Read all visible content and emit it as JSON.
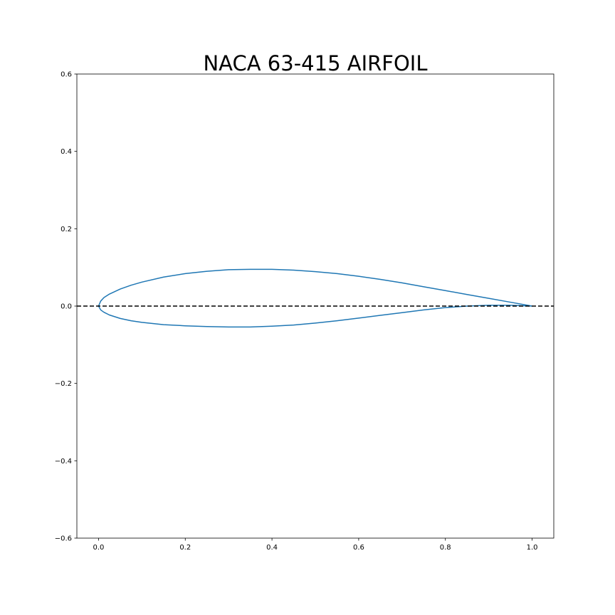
{
  "chart_data": {
    "type": "line",
    "title": "NACA 63-415 AIRFOIL",
    "xlabel": "",
    "ylabel": "",
    "xlim": [
      -0.05,
      1.05
    ],
    "ylim": [
      -0.6,
      0.6
    ],
    "x_ticks": [
      0.0,
      0.2,
      0.4,
      0.6,
      0.8,
      1.0
    ],
    "x_tick_labels": [
      "0.0",
      "0.2",
      "0.4",
      "0.6",
      "0.8",
      "1.0"
    ],
    "y_ticks": [
      -0.6,
      -0.4,
      -0.2,
      0.0,
      0.2,
      0.4,
      0.6
    ],
    "y_tick_labels": [
      "−0.6",
      "−0.4",
      "−0.2",
      "0.0",
      "0.2",
      "0.4",
      "0.6"
    ],
    "grid": false,
    "series": [
      {
        "color": "#1f77b4",
        "style": "solid",
        "x": [
          1.0,
          0.95,
          0.9,
          0.85,
          0.8,
          0.75,
          0.7,
          0.65,
          0.6,
          0.55,
          0.5,
          0.45,
          0.4,
          0.35,
          0.3,
          0.25,
          0.2,
          0.15,
          0.1,
          0.075,
          0.05,
          0.025,
          0.0125,
          0.005,
          0.0,
          0.005,
          0.0125,
          0.025,
          0.05,
          0.075,
          0.1,
          0.15,
          0.2,
          0.25,
          0.3,
          0.35,
          0.4,
          0.45,
          0.5,
          0.55,
          0.6,
          0.65,
          0.7,
          0.75,
          0.8,
          0.85,
          0.9,
          0.95,
          1.0
        ],
        "y": [
          0.0,
          0.01,
          0.02,
          0.03,
          0.04,
          0.05,
          0.06,
          0.069,
          0.077,
          0.084,
          0.089,
          0.093,
          0.095,
          0.095,
          0.094,
          0.09,
          0.084,
          0.075,
          0.062,
          0.054,
          0.044,
          0.031,
          0.022,
          0.013,
          0.0,
          -0.01,
          -0.016,
          -0.023,
          -0.032,
          -0.038,
          -0.042,
          -0.048,
          -0.051,
          -0.053,
          -0.054,
          -0.054,
          -0.052,
          -0.049,
          -0.044,
          -0.038,
          -0.031,
          -0.024,
          -0.017,
          -0.01,
          -0.004,
          0.0,
          0.002,
          0.002,
          0.0
        ]
      },
      {
        "color": "#000000",
        "style": "dashed",
        "x": [
          -0.05,
          1.05
        ],
        "y": [
          0.0,
          0.0
        ]
      }
    ]
  }
}
